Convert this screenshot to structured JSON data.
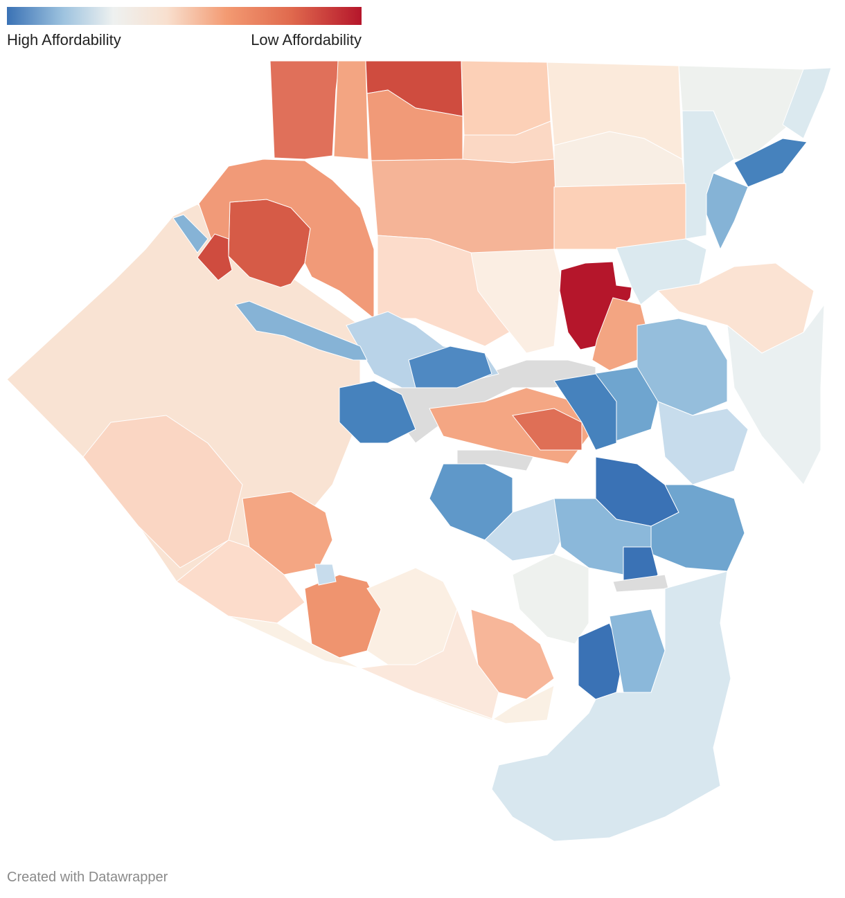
{
  "legend": {
    "low_label": "High Affordability",
    "high_label": "Low Affordability",
    "gradient": [
      "#3a72b5",
      "#9ec3df",
      "#eef1f0",
      "#f8e0cf",
      "#f39a72",
      "#e06a4e",
      "#b5162b"
    ]
  },
  "footer": {
    "credit": "Created with Datawrapper"
  },
  "colors": {
    "river": "#dcdcdc",
    "no_data": "#dcdcdc",
    "outline": "#ffffff"
  }
}
